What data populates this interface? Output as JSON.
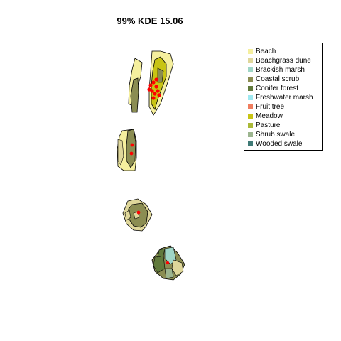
{
  "title": "99% KDE 15.06",
  "legend": [
    {
      "label": "Beach",
      "color": "#f5ef9e"
    },
    {
      "label": "Beachgrass dune",
      "color": "#dfd79a"
    },
    {
      "label": "Brackish marsh",
      "color": "#9fd6c6"
    },
    {
      "label": "Coastal scrub",
      "color": "#8b8d52"
    },
    {
      "label": "Conifer forest",
      "color": "#617a3c"
    },
    {
      "label": "Freshwater marsh",
      "color": "#9ee9f1"
    },
    {
      "label": "Fruit tree",
      "color": "#f07d5e"
    },
    {
      "label": "Meadow",
      "color": "#c8c414"
    },
    {
      "label": "Pasture",
      "color": "#aab937"
    },
    {
      "label": "Shrub swale",
      "color": "#9cb58f"
    },
    {
      "label": "Wooded swale",
      "color": "#3f7a76"
    }
  ],
  "map": {
    "point_color": "#ff0000",
    "outline_color": "#000000"
  }
}
